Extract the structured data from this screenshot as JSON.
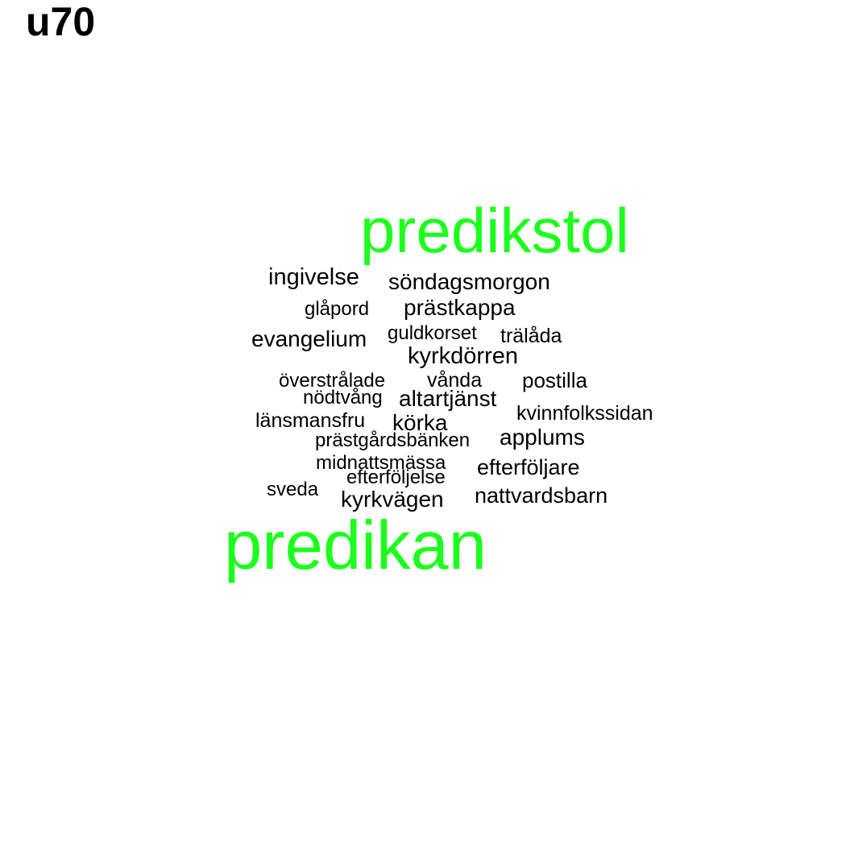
{
  "title": "u70",
  "colors": {
    "highlight": "#1cff1c",
    "normal": "#000000",
    "background": "#ffffff"
  },
  "words": [
    "predikstol",
    "ingivelse",
    "söndagsmorgon",
    "glåpord",
    "prästkappa",
    "evangelium",
    "guldkorset",
    "trälåda",
    "kyrkdörren",
    "överstrålade",
    "vånda",
    "postilla",
    "nödtvång",
    "altartjänst",
    "kvinnfolkssidan",
    "länsmansfru",
    "körka",
    "prästgårdsbänken",
    "applums",
    "midnattsmässa",
    "efterföljare",
    "efterföljelse",
    "sveda",
    "kyrkvägen",
    "nattvardsbarn",
    "predikan"
  ]
}
